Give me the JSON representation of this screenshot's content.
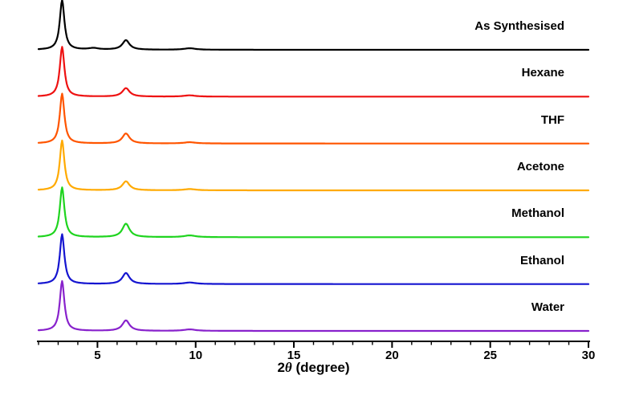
{
  "page": {
    "background_color": "#ffffff"
  },
  "chart_data": {
    "type": "line",
    "title": "",
    "xlabel": "2θ (degree)",
    "xlabel_parts": {
      "prefix": "2",
      "theta": "θ",
      "suffix": " (degree)"
    },
    "ylabel": "",
    "xlim": [
      2,
      30
    ],
    "x_major_ticks": [
      5,
      10,
      15,
      20,
      25,
      30
    ],
    "x_minor_tick_step": 1,
    "grid": false,
    "legend_position": "inline-right-labels",
    "description": "Stacked powder X-ray diffraction patterns, offset vertically; each pattern shows a strong peak near 3.2 degrees and a weaker peak near 6.45 degrees",
    "series": [
      {
        "name": "As Synthesised",
        "color": "#000000",
        "peaks": [
          {
            "center": 3.2,
            "height": 1.0,
            "width": 0.14
          },
          {
            "center": 4.8,
            "height": 0.03,
            "width": 0.3
          },
          {
            "center": 6.45,
            "height": 0.19,
            "width": 0.22
          },
          {
            "center": 9.7,
            "height": 0.03,
            "width": 0.35
          }
        ]
      },
      {
        "name": "Hexane",
        "color": "#ee1111",
        "peaks": [
          {
            "center": 3.2,
            "height": 1.0,
            "width": 0.14
          },
          {
            "center": 6.45,
            "height": 0.17,
            "width": 0.22
          },
          {
            "center": 9.7,
            "height": 0.025,
            "width": 0.35
          }
        ]
      },
      {
        "name": "THF",
        "color": "#ff5500",
        "peaks": [
          {
            "center": 3.2,
            "height": 1.0,
            "width": 0.14
          },
          {
            "center": 6.45,
            "height": 0.2,
            "width": 0.22
          },
          {
            "center": 9.7,
            "height": 0.025,
            "width": 0.35
          }
        ]
      },
      {
        "name": "Acetone",
        "color": "#ffaa00",
        "peaks": [
          {
            "center": 3.2,
            "height": 1.0,
            "width": 0.14
          },
          {
            "center": 6.45,
            "height": 0.18,
            "width": 0.22
          },
          {
            "center": 9.7,
            "height": 0.025,
            "width": 0.35
          }
        ]
      },
      {
        "name": "Methanol",
        "color": "#1fd41f",
        "peaks": [
          {
            "center": 3.2,
            "height": 1.0,
            "width": 0.14
          },
          {
            "center": 6.45,
            "height": 0.27,
            "width": 0.22
          },
          {
            "center": 9.7,
            "height": 0.035,
            "width": 0.35
          }
        ]
      },
      {
        "name": "Ethanol",
        "color": "#1515d0",
        "peaks": [
          {
            "center": 3.2,
            "height": 1.0,
            "width": 0.14
          },
          {
            "center": 6.45,
            "height": 0.22,
            "width": 0.22
          },
          {
            "center": 9.7,
            "height": 0.03,
            "width": 0.35
          }
        ]
      },
      {
        "name": "Water",
        "color": "#8822cc",
        "peaks": [
          {
            "center": 3.2,
            "height": 1.0,
            "width": 0.14
          },
          {
            "center": 6.45,
            "height": 0.21,
            "width": 0.22
          },
          {
            "center": 9.7,
            "height": 0.03,
            "width": 0.35
          }
        ]
      }
    ]
  }
}
